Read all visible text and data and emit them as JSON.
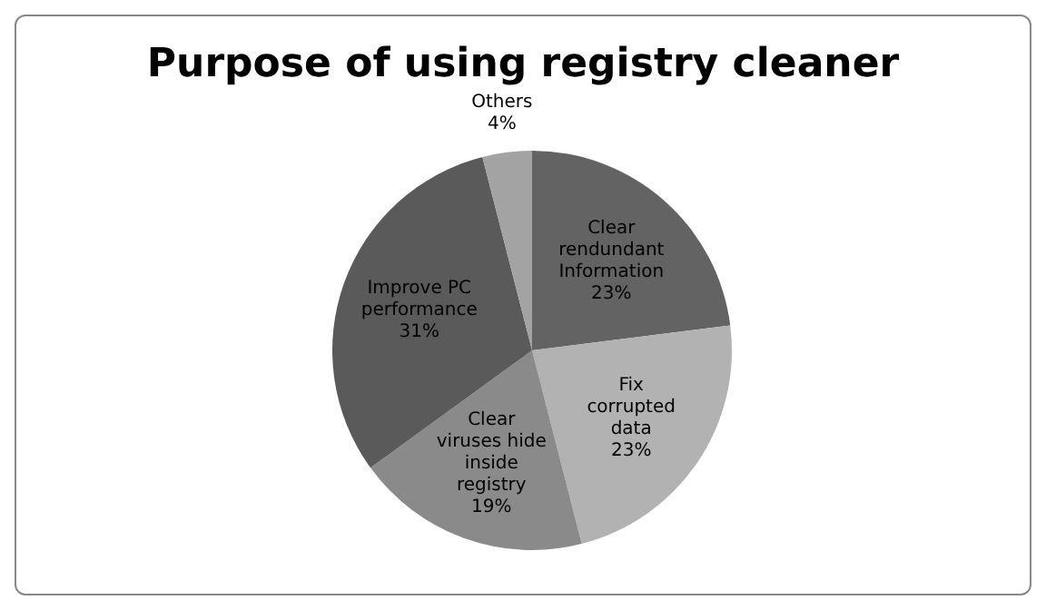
{
  "chart_data": {
    "type": "pie",
    "title": "Purpose of using registry cleaner",
    "categories": [
      "Clear rendundant Information",
      "Fix corrupted data",
      "Clear viruses hide inside registry",
      "Improve PC performance",
      "Others"
    ],
    "values": [
      23,
      23,
      19,
      31,
      4
    ],
    "value_labels": [
      "23%",
      "23%",
      "19%",
      "31%",
      "4%"
    ],
    "colors": [
      "#636363",
      "#b2b2b2",
      "#8a8a8a",
      "#5a5a5a",
      "#a3a3a3"
    ],
    "legend": false
  }
}
